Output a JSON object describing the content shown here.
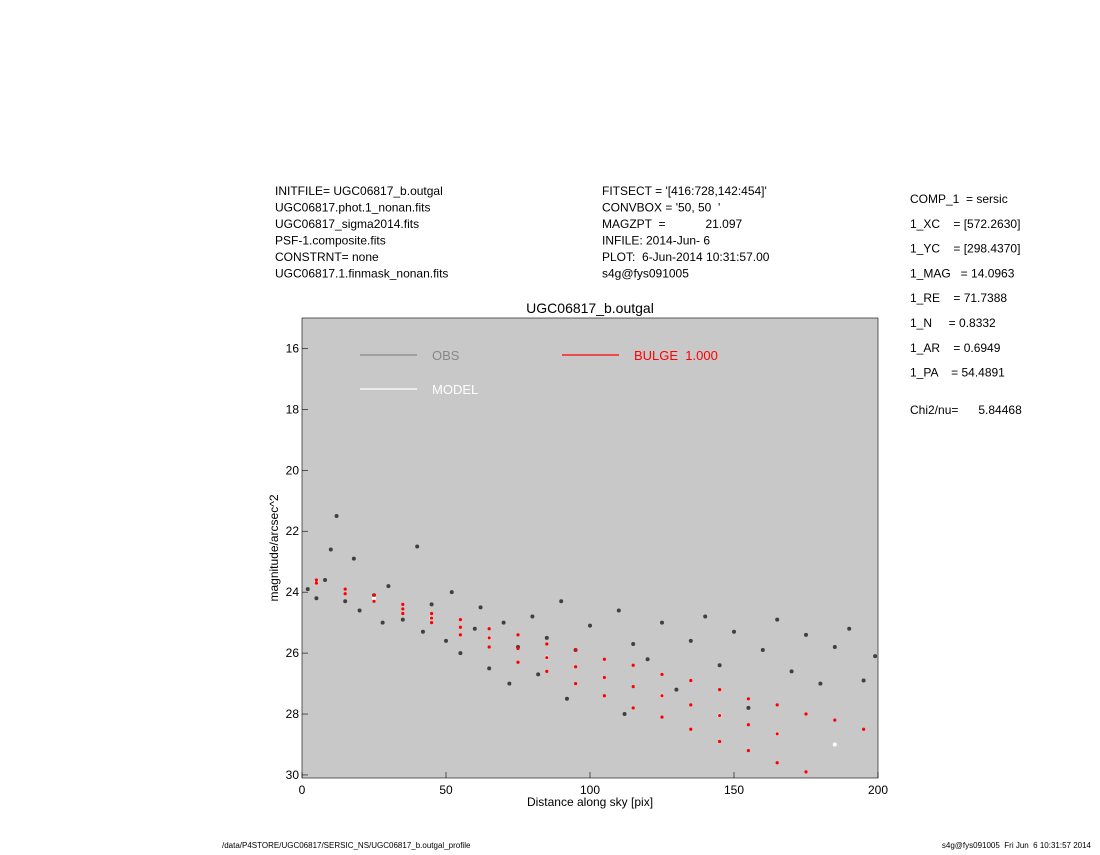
{
  "header": {
    "left": [
      "INITFILE= UGC06817_b.outgal",
      "UGC06817.phot.1_nonan.fits",
      "UGC06817_sigma2014.fits",
      "PSF-1.composite.fits",
      "CONSTRNT= none",
      "UGC06817.1.finmask_nonan.fits"
    ],
    "middle": [
      "FITSECT = '[416:728,142:454]'",
      "CONVBOX = '50, 50  '",
      "MAGZPT  =            21.097",
      "INFILE: 2014-Jun- 6",
      "PLOT:  6-Jun-2014 10:31:57.00",
      "s4g@fys091005"
    ],
    "right": [
      "COMP_1  = sersic",
      "1_XC    = [572.2630]",
      "1_YC    = [298.4370]",
      "1_MAG   = 14.0963",
      "1_RE    = 71.7388",
      "1_N     = 0.8332",
      "1_AR    = 0.6949",
      "1_PA    = 54.4891"
    ],
    "chi2": "Chi2/nu=      5.84468"
  },
  "footer": {
    "left": "/data/P4STORE/UGC06817/SERSIC_NS/UGC06817_b.outgal_profile",
    "right": "s4g@fys091005  Fri Jun  6 10:31:57 2014"
  },
  "chart_data": {
    "type": "scatter",
    "title": "UGC06817_b.outgal",
    "x_label": "Distance along sky [pix]",
    "y_label": "magnitude/arcsec^2",
    "xlim": [
      0,
      200
    ],
    "xticks": [
      0,
      50,
      100,
      150,
      200
    ],
    "ylim": [
      15,
      30.1
    ],
    "yticks": [
      16,
      18,
      20,
      22,
      24,
      26,
      28,
      30
    ],
    "y_inverted": true,
    "background": "#c8c8c8",
    "series": [
      {
        "name": "OBS",
        "color": "#404040",
        "legend_color": "#888888",
        "x": [
          2,
          5,
          8,
          10,
          12,
          15,
          18,
          20,
          25,
          28,
          30,
          35,
          40,
          42,
          45,
          50,
          52,
          55,
          60,
          62,
          65,
          70,
          72,
          75,
          80,
          82,
          85,
          90,
          92,
          95,
          100,
          105,
          110,
          112,
          115,
          120,
          125,
          130,
          135,
          140,
          145,
          150,
          155,
          160,
          165,
          170,
          175,
          180,
          185,
          190,
          195,
          199
        ],
        "values": [
          23.9,
          24.2,
          23.6,
          22.6,
          21.5,
          24.3,
          22.9,
          24.6,
          24.1,
          25.0,
          23.8,
          24.9,
          22.5,
          25.3,
          24.4,
          25.6,
          24.0,
          26.0,
          25.2,
          24.5,
          26.5,
          25.0,
          27.0,
          25.8,
          24.8,
          26.7,
          25.5,
          24.3,
          27.5,
          25.9,
          25.1,
          26.8,
          24.6,
          28.0,
          25.7,
          26.2,
          25.0,
          27.2,
          25.6,
          24.8,
          26.4,
          25.3,
          27.8,
          25.9,
          24.9,
          26.6,
          25.4,
          27.0,
          25.8,
          25.2,
          26.9,
          26.1
        ]
      },
      {
        "name": "MODEL",
        "color": "#ffffff",
        "legend_color": "#ffffff",
        "x": [
          5,
          25,
          45,
          65,
          85,
          105,
          125,
          145,
          165,
          185
        ],
        "values": [
          23.65,
          24.2,
          24.85,
          25.5,
          26.15,
          26.8,
          27.4,
          28.05,
          28.65,
          29.0
        ]
      },
      {
        "name": "BULGE  1.000",
        "color": "#ff0000",
        "legend_color": "#ff0000",
        "x": [
          5,
          5,
          15,
          15,
          25,
          25,
          35,
          35,
          35,
          45,
          45,
          45,
          55,
          55,
          55,
          65,
          65,
          65,
          75,
          75,
          75,
          85,
          85,
          85,
          95,
          95,
          95,
          105,
          105,
          105,
          115,
          115,
          115,
          125,
          125,
          125,
          135,
          135,
          135,
          145,
          145,
          145,
          155,
          155,
          155,
          165,
          165,
          165,
          175,
          175,
          185,
          195
        ],
        "values": [
          23.6,
          23.7,
          23.9,
          24.05,
          24.1,
          24.3,
          24.4,
          24.55,
          24.7,
          24.7,
          24.85,
          25.0,
          24.9,
          25.15,
          25.4,
          25.2,
          25.5,
          25.8,
          25.4,
          25.85,
          26.3,
          25.7,
          26.15,
          26.6,
          25.9,
          26.45,
          27.0,
          26.2,
          26.8,
          27.4,
          26.4,
          27.1,
          27.8,
          26.7,
          27.4,
          28.1,
          26.9,
          27.7,
          28.5,
          27.2,
          28.05,
          28.9,
          27.5,
          28.35,
          29.2,
          27.7,
          28.65,
          29.6,
          28.0,
          29.9,
          28.2,
          28.5
        ]
      }
    ]
  }
}
